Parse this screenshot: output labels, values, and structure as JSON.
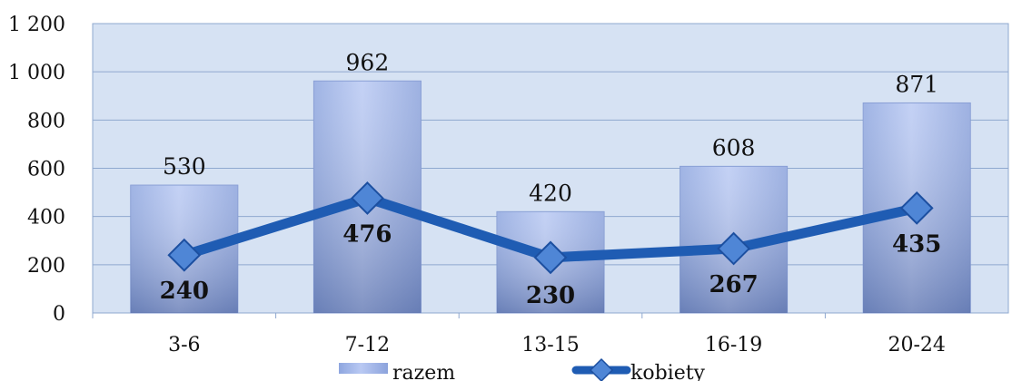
{
  "chart_data": {
    "type": "bar",
    "categories": [
      "3-6",
      "7-12",
      "13-15",
      "16-19",
      "20-24"
    ],
    "series": [
      {
        "name": "razem",
        "type": "bar",
        "values": [
          530,
          962,
          420,
          608,
          871
        ],
        "color": "#9eb3ea"
      },
      {
        "name": "kobiety",
        "type": "line",
        "values": [
          240,
          476,
          230,
          267,
          435
        ],
        "color": "#1f5cb3"
      }
    ],
    "ylim": [
      0,
      1200
    ],
    "yticks": [
      0,
      200,
      400,
      600,
      800,
      1000,
      1200
    ],
    "ytick_labels": [
      "0",
      "200",
      "400",
      "600",
      "800",
      "1 000",
      "1 200"
    ],
    "grid": true,
    "plot_background": "#d6e2f3",
    "legend_position": "bottom"
  }
}
